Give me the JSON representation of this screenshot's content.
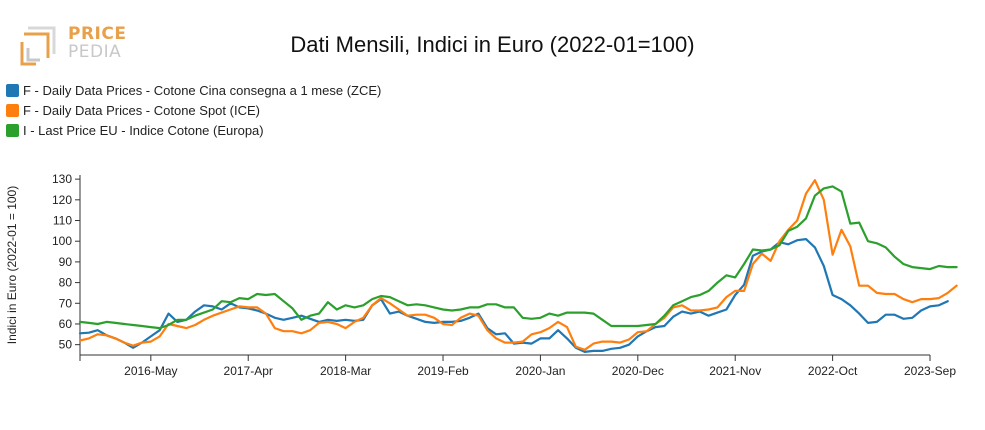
{
  "logo": {
    "line1": "PRICE",
    "line2": "PEDIA"
  },
  "colors": {
    "blue": "#1f77b4",
    "orange": "#ff7f0e",
    "green": "#2ca02c",
    "logo_orange": "#e8a04a",
    "logo_gray": "#c8c8c8"
  },
  "chart_data": {
    "type": "line",
    "title": "Dati Mensili, Indici in Euro (2022-01=100)",
    "xlabel": "",
    "ylabel": "Indici in Euro (2022-01 = 100)",
    "xlim": [
      "2015-09",
      "2023-09"
    ],
    "ylim": [
      45,
      132
    ],
    "y_ticks": [
      50,
      60,
      70,
      80,
      90,
      100,
      110,
      120,
      130
    ],
    "x_ticks": [
      "2016-May",
      "2017-Apr",
      "2018-Mar",
      "2019-Feb",
      "2020-Jan",
      "2020-Dec",
      "2021-Nov",
      "2022-Oct",
      "2023-Sep"
    ],
    "x_tick_dates": [
      "2016-05",
      "2017-04",
      "2018-03",
      "2019-02",
      "2020-01",
      "2020-12",
      "2021-11",
      "2022-10",
      "2023-09"
    ],
    "legend_position": "top-left",
    "grid": false,
    "series": [
      {
        "name": "F - Daily Data Prices - Cotone Cina consegna a 1 mese (ZCE)",
        "color": "#1f77b4",
        "start": "2015-09",
        "values": [
          55.5,
          55.8,
          57,
          54.5,
          53,
          51,
          48.5,
          51,
          54,
          57,
          65,
          61,
          62,
          66,
          69,
          68.5,
          67,
          70,
          68,
          67.5,
          66.5,
          65,
          63,
          62,
          63,
          64,
          62.5,
          61,
          62,
          61.5,
          62,
          61.5,
          62,
          69,
          72,
          65,
          66,
          64,
          62.5,
          61,
          60.5,
          61,
          61,
          61.5,
          63,
          65,
          58,
          55,
          55.5,
          50.5,
          51,
          50.5,
          53,
          53,
          57,
          53,
          48.5,
          46.5,
          47,
          47,
          48,
          48.5,
          50,
          54,
          56.5,
          58.5,
          59,
          63.5,
          66,
          65,
          66,
          64,
          65.5,
          67,
          74,
          79,
          93,
          95,
          96,
          99.5,
          98.5,
          100.5,
          101,
          97,
          88,
          74,
          72,
          69,
          65,
          60.5,
          61,
          64.5,
          64.5,
          62.5,
          63,
          66.5,
          68.5,
          69,
          71
        ]
      },
      {
        "name": "F - Daily Data Prices - Cotone Spot (ICE)",
        "color": "#ff7f0e",
        "start": "2015-09",
        "values": [
          52,
          53,
          55,
          54.5,
          53,
          51,
          49.5,
          51,
          51.5,
          54,
          60,
          59,
          58,
          59.5,
          62,
          64,
          65.5,
          67,
          68.5,
          68,
          68,
          65,
          58,
          56.5,
          56.5,
          55.5,
          57,
          60.5,
          61,
          60,
          58,
          61,
          63,
          69,
          72.5,
          70,
          67,
          64,
          64.5,
          64.5,
          63,
          60,
          59.5,
          63,
          65,
          64,
          57,
          53,
          51,
          51,
          51.5,
          55,
          56,
          58,
          61,
          58.5,
          49,
          47.5,
          50.5,
          51.5,
          51.5,
          51,
          52.5,
          56,
          56.5,
          60,
          63,
          68,
          69,
          66.5,
          66.5,
          67,
          68,
          73,
          76,
          76,
          89,
          94,
          90.5,
          100,
          105.5,
          110,
          123,
          129.5,
          120,
          93.5,
          105.5,
          97.5,
          78.5,
          78.5,
          75,
          74.5,
          74.5,
          72,
          70.5,
          72,
          72,
          72.5,
          75,
          78.5
        ]
      },
      {
        "name": "I - Last Price EU - Indice Cotone (Europa)",
        "color": "#2ca02c",
        "start": "2015-09",
        "values": [
          61,
          60.5,
          60,
          61,
          60.5,
          60,
          59.5,
          59,
          58.5,
          58,
          59.5,
          62,
          62,
          64,
          65.5,
          67,
          71,
          70.5,
          72.5,
          72,
          74.5,
          74,
          74.5,
          71,
          67.5,
          62,
          64,
          65,
          70.5,
          67,
          69,
          68,
          69,
          72,
          73.5,
          73,
          71,
          69,
          69.5,
          69,
          68,
          67,
          66.5,
          67,
          68,
          68,
          69.5,
          69.5,
          68,
          68,
          63,
          62.5,
          63,
          65,
          64,
          65.5,
          65.5,
          65.5,
          65,
          62,
          59,
          59,
          59,
          59,
          59.5,
          60,
          64,
          69,
          71,
          73,
          74,
          76,
          80,
          83.5,
          82.5,
          89,
          96,
          95.5,
          96,
          98,
          105,
          107,
          111,
          122,
          125.5,
          126.5,
          124,
          108.5,
          109,
          100,
          99,
          97,
          92.5,
          89,
          87.5,
          87,
          86.5,
          88,
          87.5,
          87.5
        ]
      }
    ]
  }
}
